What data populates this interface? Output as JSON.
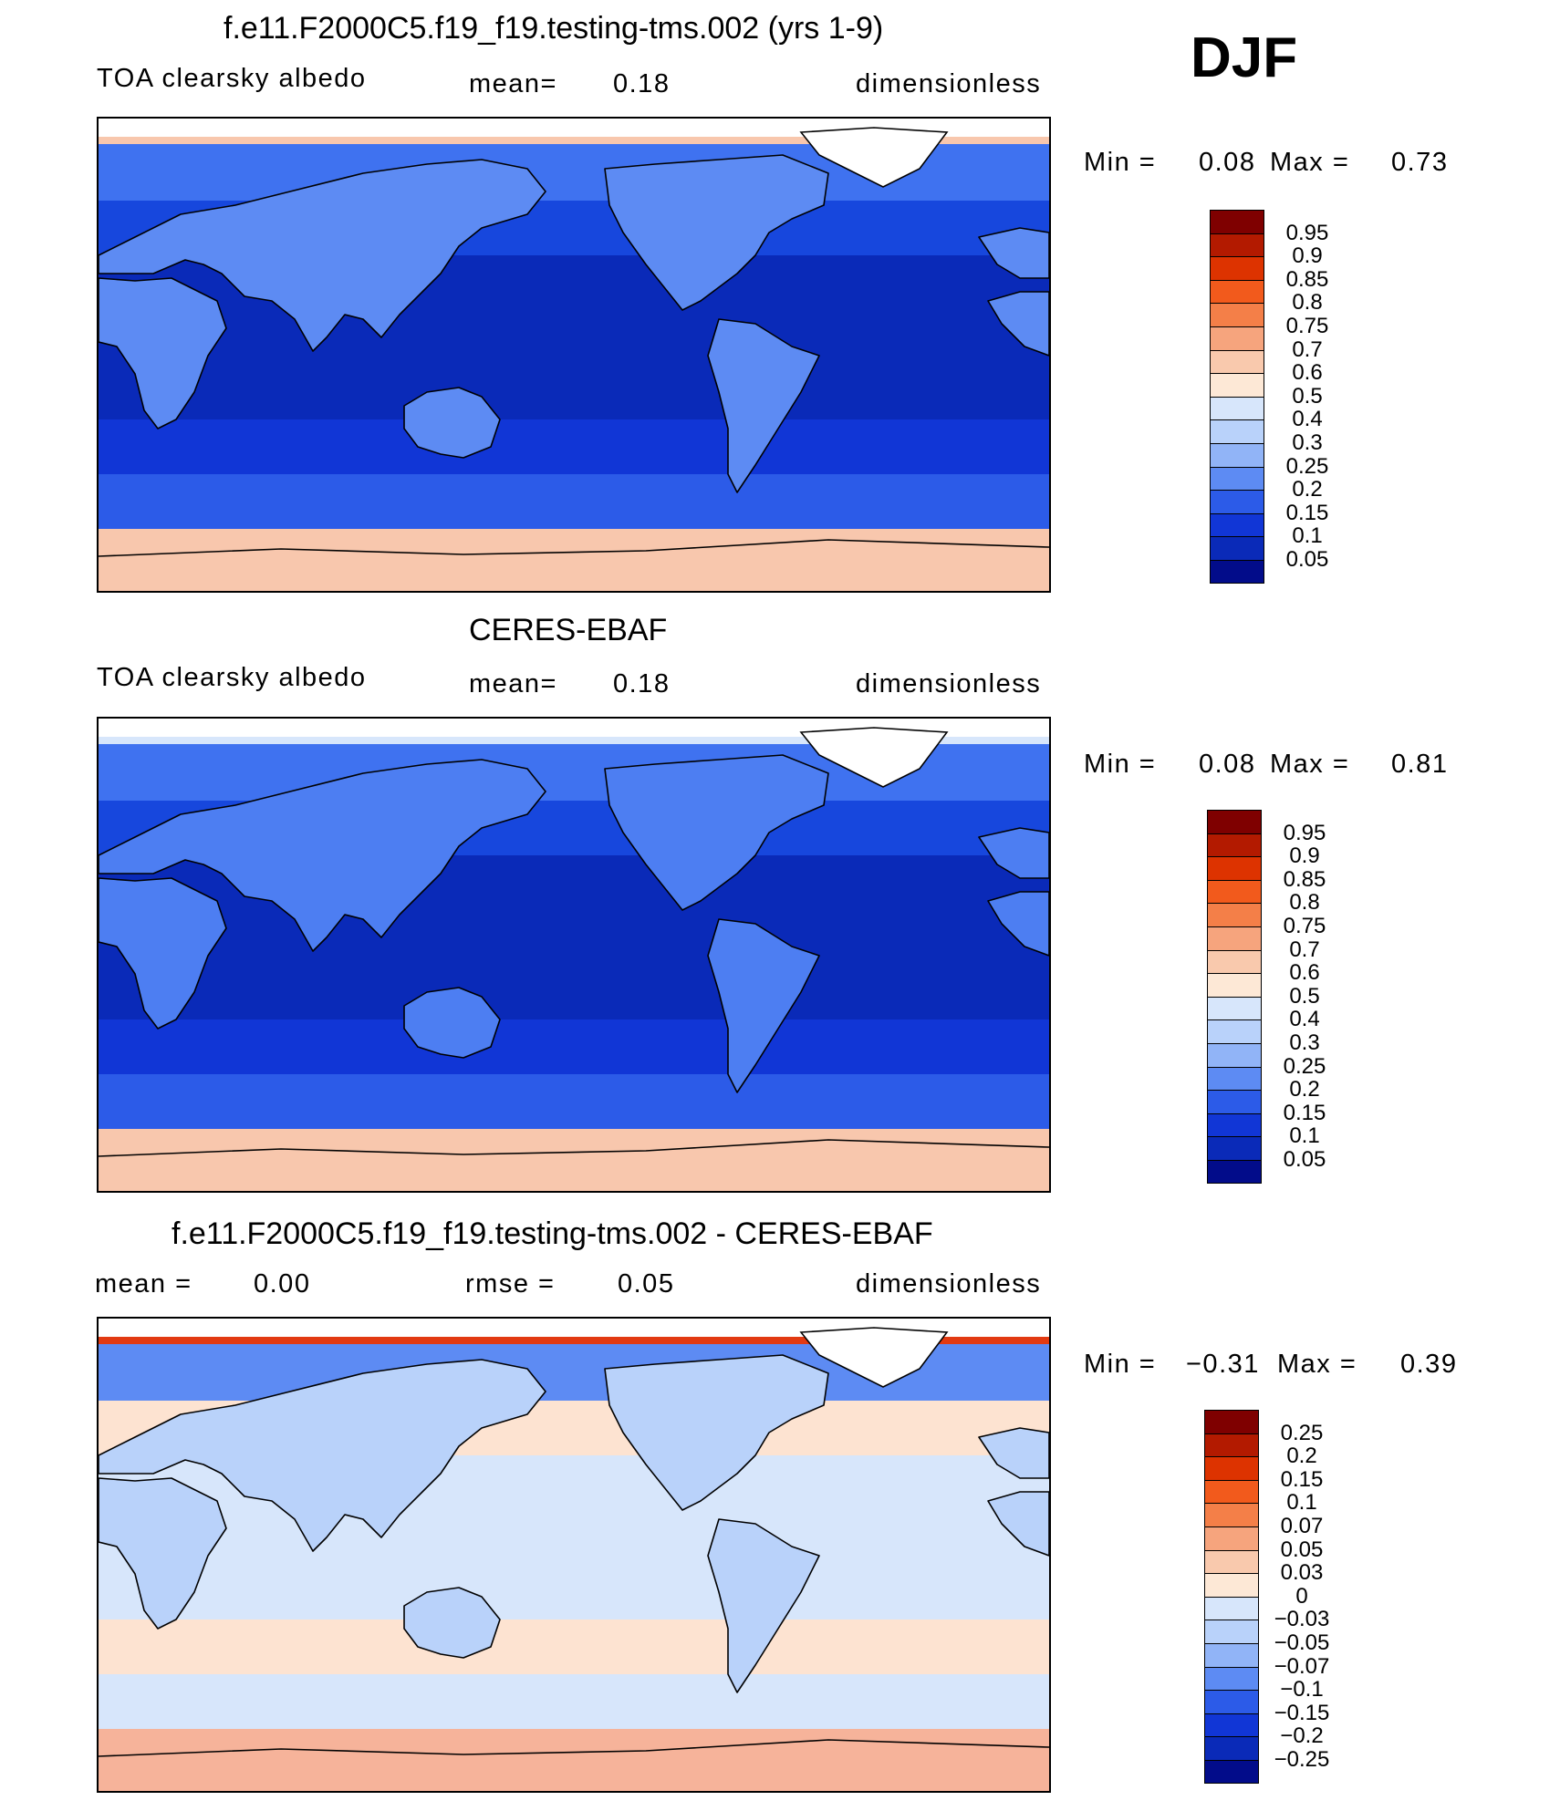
{
  "season": "DJF",
  "panels": [
    {
      "title": "f.e11.F2000C5.f19_f19.testing-tms.002 (yrs 1-9)",
      "variable": "TOA clearsky albedo",
      "stat_label": "mean=",
      "stat_value": "0.18",
      "units": "dimensionless",
      "min_label": "Min =",
      "min_value": "0.08",
      "max_label": "Max =",
      "max_value": "0.73",
      "colorbar_labels": [
        "0.95",
        "0.9",
        "0.85",
        "0.8",
        "0.75",
        "0.7",
        "0.6",
        "0.5",
        "0.4",
        "0.3",
        "0.25",
        "0.2",
        "0.15",
        "0.1",
        "0.05"
      ],
      "bands": {
        "ant": "#f8c7ad",
        "south_ocean": "#2c5be8",
        "south_mid": "#1136d6",
        "tropics": "#0a2ab8",
        "north_mid": "#1747dd",
        "north_hi": "#3f72f0",
        "arctic": "#f8c7ad",
        "land": "#5d8bf3"
      }
    },
    {
      "title": "CERES-EBAF",
      "variable": "TOA clearsky albedo",
      "stat_label": "mean=",
      "stat_value": "0.18",
      "units": "dimensionless",
      "min_label": "Min =",
      "min_value": "0.08",
      "max_label": "Max =",
      "max_value": "0.81",
      "colorbar_labels": [
        "0.95",
        "0.9",
        "0.85",
        "0.8",
        "0.75",
        "0.7",
        "0.6",
        "0.5",
        "0.4",
        "0.3",
        "0.25",
        "0.2",
        "0.15",
        "0.1",
        "0.05"
      ],
      "bands": {
        "ant": "#f8c7ad",
        "south_ocean": "#2c5be8",
        "south_mid": "#1136d6",
        "tropics": "#0a2ab8",
        "north_mid": "#1747dd",
        "north_hi": "#3f72f0",
        "arctic": "#d7e6fb",
        "land": "#4d7ef2"
      }
    },
    {
      "title": "f.e11.F2000C5.f19_f19.testing-tms.002 - CERES-EBAF",
      "variable": "mean =",
      "stat_label": "rmse =",
      "stat_value": "0.05",
      "mean_value": "0.00",
      "units": "dimensionless",
      "min_label": "Min =",
      "min_value": "−0.31",
      "max_label": "Max =",
      "max_value": "0.39",
      "colorbar_labels": [
        "0.25",
        "0.2",
        "0.15",
        "0.1",
        "0.07",
        "0.05",
        "0.03",
        "0",
        "−0.03",
        "−0.05",
        "−0.07",
        "−0.1",
        "−0.15",
        "−0.2",
        "−0.25"
      ],
      "bands": {
        "ant": "#f6b39a",
        "south_ocean": "#d7e6fb",
        "south_mid": "#fde3d1",
        "tropics": "#d7e6fb",
        "north_mid": "#fde3d1",
        "north_hi": "#5d8bf3",
        "arctic": "#e23a12",
        "land": "#b9d2fa"
      }
    }
  ],
  "colorbar_colors": [
    "#7f0000",
    "#b31a00",
    "#dd3300",
    "#f25a1c",
    "#f47f48",
    "#f6a47d",
    "#f9c9ad",
    "#fde8d6",
    "#d7e6fb",
    "#b9d2fa",
    "#91b4f7",
    "#5d8bf3",
    "#2c5be8",
    "#1136d6",
    "#0a2ab8",
    "#020c8a"
  ]
}
